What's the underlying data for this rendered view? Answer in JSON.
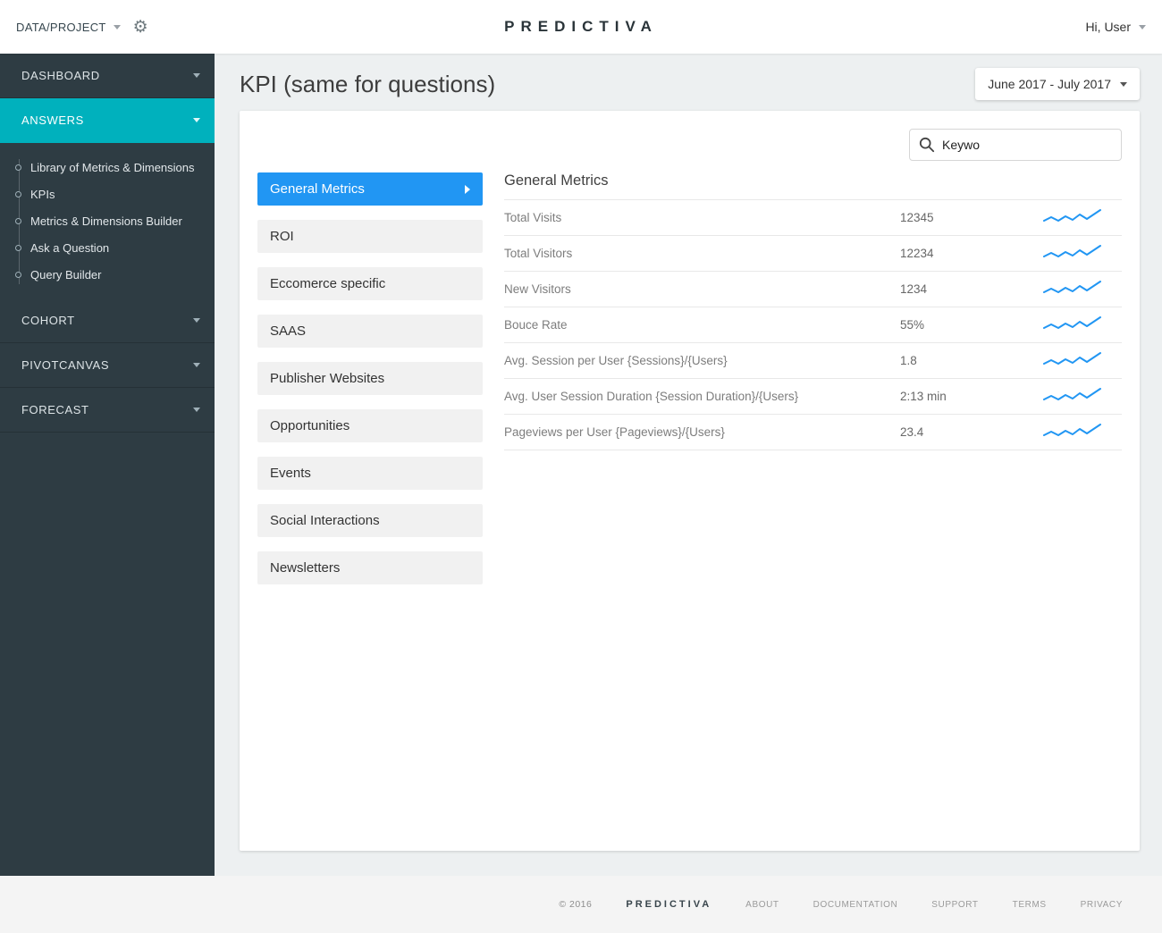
{
  "topbar": {
    "project_selector": "DATA/PROJECT",
    "brand": "PREDICTIVA",
    "greeting": "Hi, User"
  },
  "sidebar": {
    "sections": [
      {
        "label": "DASHBOARD"
      },
      {
        "label": "ANSWERS",
        "active": true,
        "children": [
          "Library of Metrics & Dimensions",
          "KPIs",
          "Metrics & Dimensions Builder",
          "Ask a Question",
          "Query Builder"
        ]
      },
      {
        "label": "COHORT"
      },
      {
        "label": "PIVOTCANVAS"
      },
      {
        "label": "FORECAST"
      }
    ]
  },
  "page": {
    "title": "KPI (same for questions)",
    "date_range": "June 2017 - July 2017"
  },
  "search": {
    "value": "Keywo"
  },
  "categories": [
    "General Metrics",
    "ROI",
    "Eccomerce specific",
    "SAAS",
    "Publisher Websites",
    "Opportunities",
    "Events",
    "Social Interactions",
    "Newsletters"
  ],
  "active_category": "General Metrics",
  "metrics": {
    "heading": "General Metrics",
    "rows": [
      {
        "label": "Total Visits",
        "value": "12345"
      },
      {
        "label": "Total Visitors",
        "value": "12234"
      },
      {
        "label": "New Visitors",
        "value": "1234"
      },
      {
        "label": "Bouce Rate",
        "value": "55%"
      },
      {
        "label": "Avg. Session per User {Sessions}/{Users}",
        "value": "1.8"
      },
      {
        "label": "Avg. User Session Duration {Session Duration}/{Users}",
        "value": "2:13 min"
      },
      {
        "label": "Pageviews per User {Pageviews}/{Users}",
        "value": "23.4"
      }
    ]
  },
  "footer": {
    "copyright": "© 2016",
    "brand": "PREDICTIVA",
    "links": [
      "ABOUT",
      "DOCUMENTATION",
      "SUPPORT",
      "TERMS",
      "PRIVACY"
    ]
  },
  "colors": {
    "accent_teal": "#00b1bd",
    "accent_blue": "#2196f3",
    "sidebar_bg": "#2e3c43"
  }
}
